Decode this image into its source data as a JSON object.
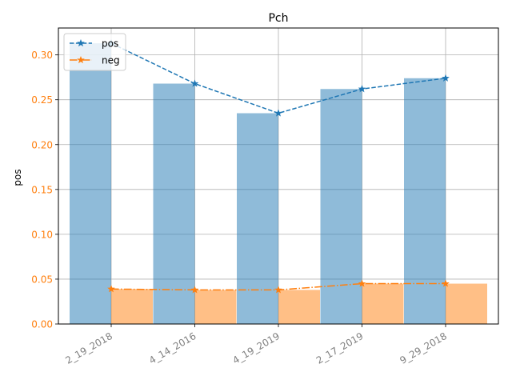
{
  "chart_data": {
    "type": "bar",
    "title": "Pch",
    "ylabel": "pos",
    "xlabel": "",
    "categories": [
      "2_19_2018",
      "4_14_2016",
      "4_19_2019",
      "2_17_2019",
      "9_29_2018"
    ],
    "ylim": [
      0,
      0.33
    ],
    "yticks": [
      "0.00",
      "0.05",
      "0.10",
      "0.15",
      "0.20",
      "0.25",
      "0.30"
    ],
    "grid": true,
    "legend_position": "top-left",
    "series": [
      {
        "name": "pos",
        "kind": "bar+line",
        "values": [
          0.313,
          0.268,
          0.235,
          0.262,
          0.274
        ],
        "color": "#1f77b4",
        "bar_color": "#8fb8d9",
        "line_style": "dashed",
        "marker": "star"
      },
      {
        "name": "neg",
        "kind": "bar+line",
        "values": [
          0.039,
          0.038,
          0.038,
          0.045,
          0.045
        ],
        "color": "#ff7f0e",
        "bar_color": "#ffbb80",
        "line_style": "dashdot",
        "marker": "star"
      }
    ],
    "tick_label_color_x": "#808080",
    "tick_label_color_y": "#ff7f0e"
  }
}
